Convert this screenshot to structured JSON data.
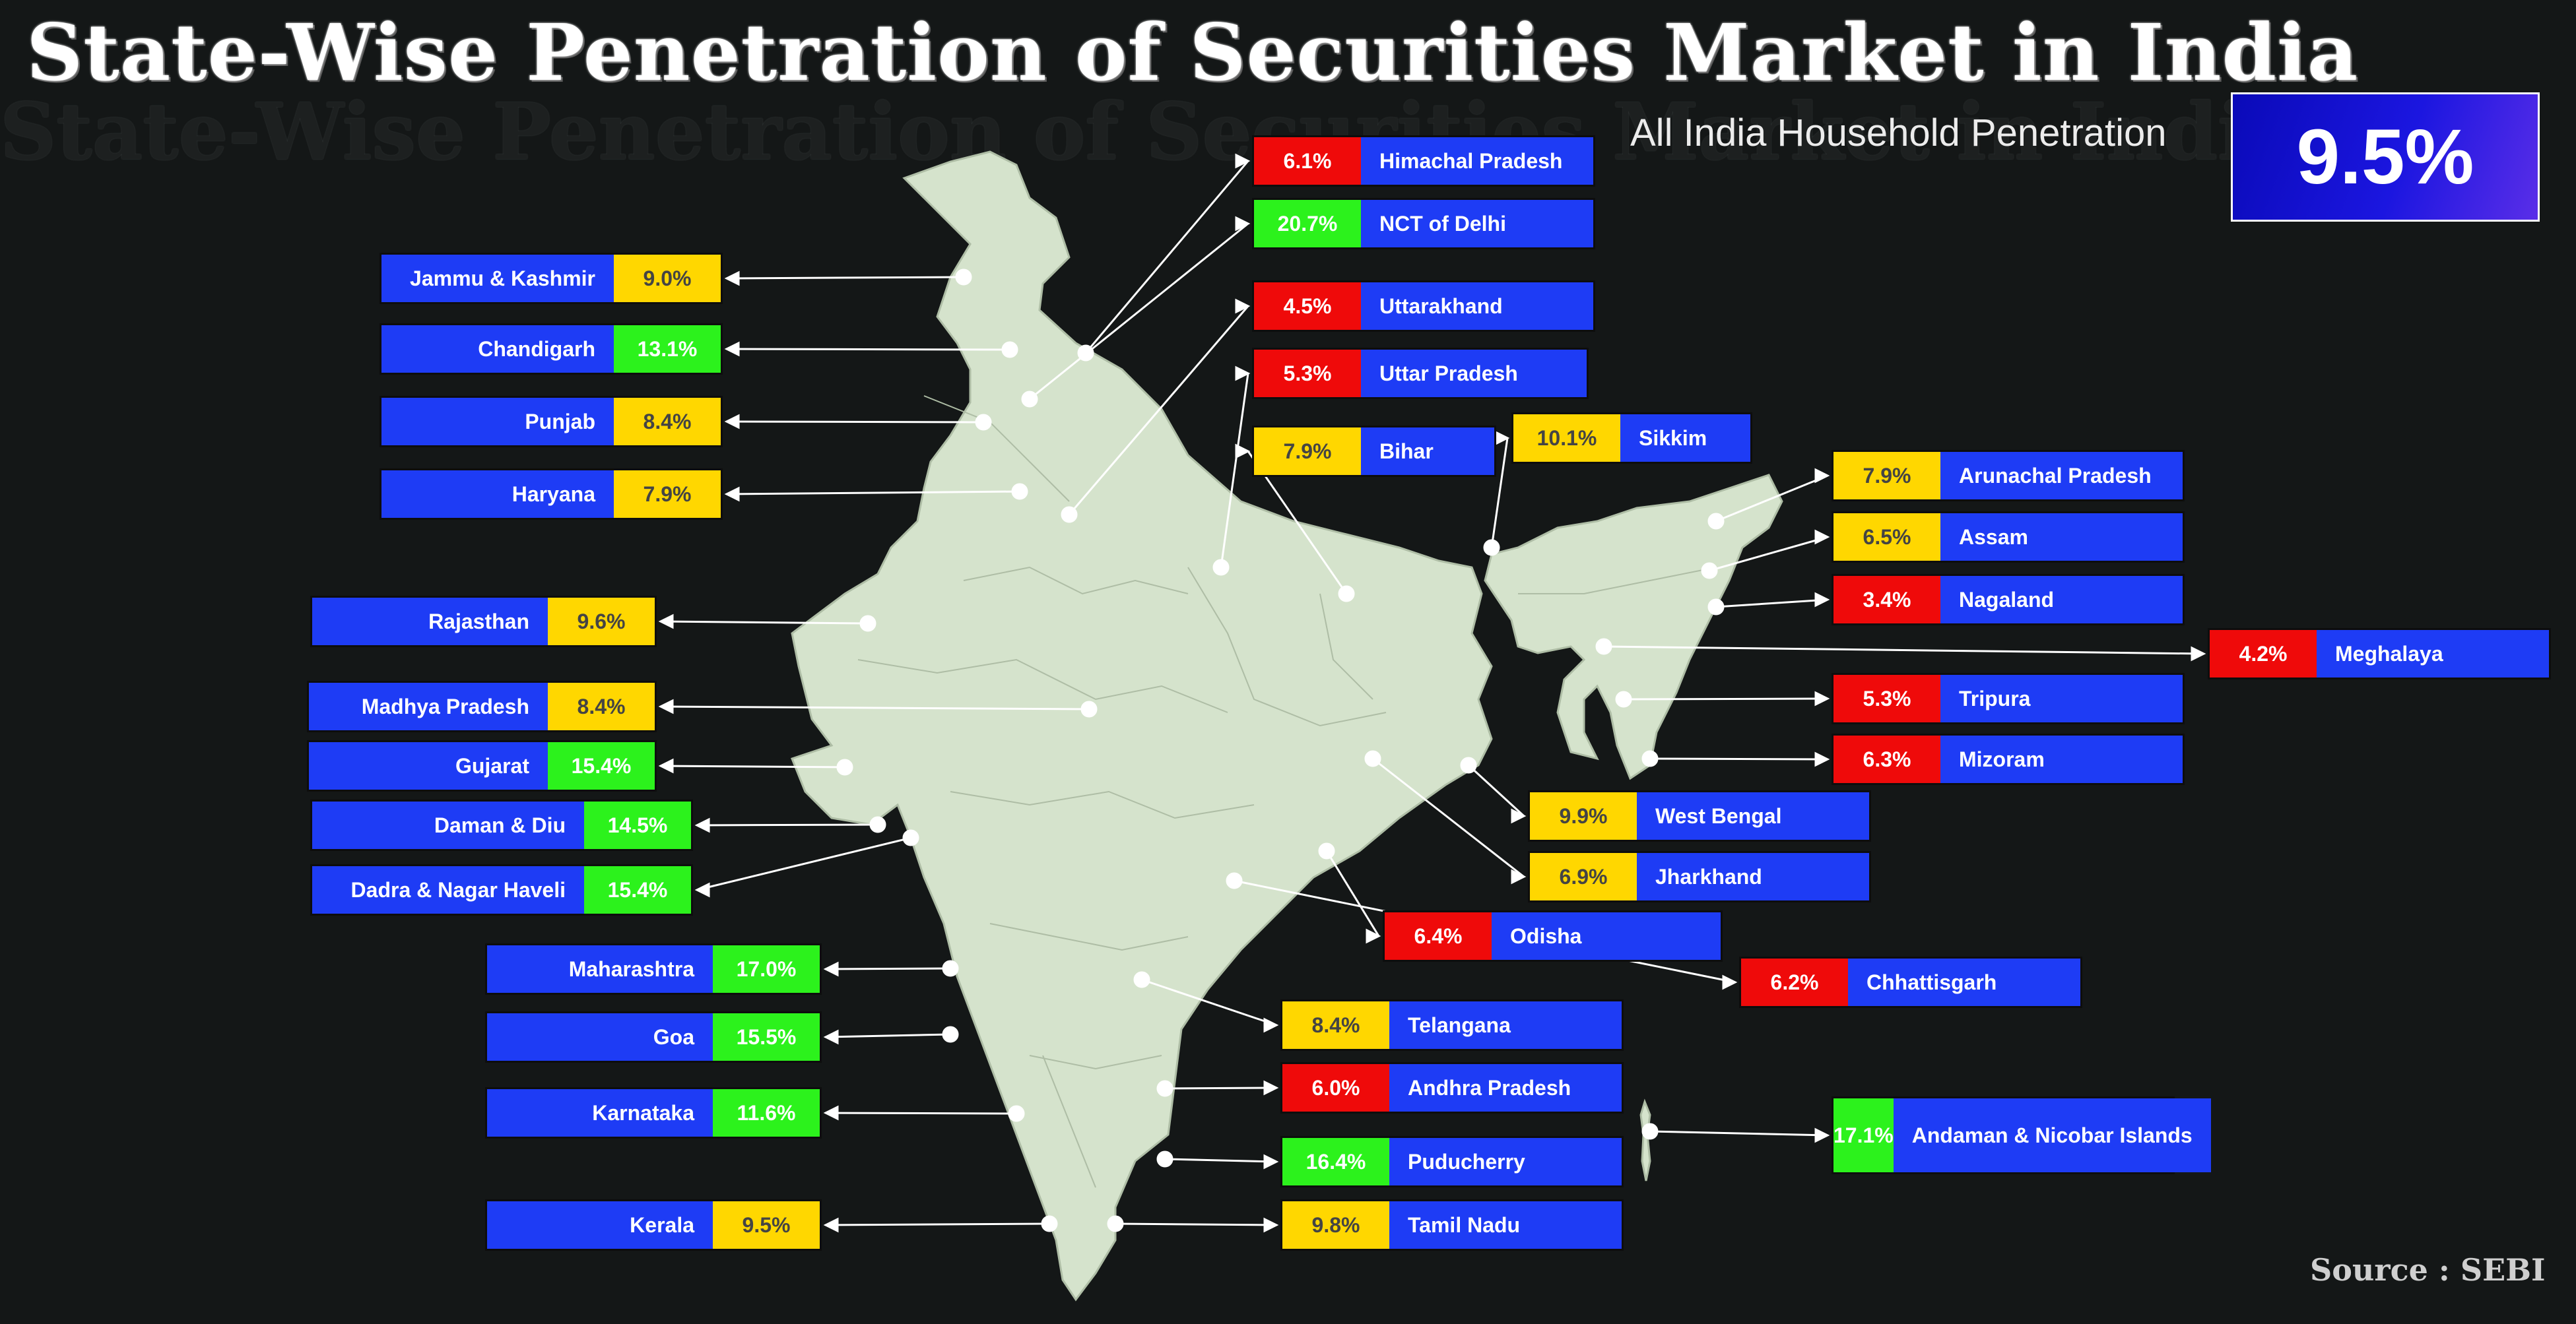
{
  "title": "State-Wise Penetration of Securities Market in India",
  "all_india": {
    "label": "All India Household Penetration",
    "value": "9.5%"
  },
  "source": "Source : SEBI",
  "colors": {
    "red": "#ef0a0a",
    "green": "#2cf21c",
    "yellow": "#ffd700",
    "label_bg": "#1e3cf5",
    "map_fill": "#d5e3cc"
  },
  "states": [
    {
      "name": "Jammu & Kashmir",
      "value": "9.0%",
      "color": "yellow"
    },
    {
      "name": "Chandigarh",
      "value": "13.1%",
      "color": "green"
    },
    {
      "name": "Punjab",
      "value": "8.4%",
      "color": "yellow"
    },
    {
      "name": "Haryana",
      "value": "7.9%",
      "color": "yellow"
    },
    {
      "name": "Rajasthan",
      "value": "9.6%",
      "color": "yellow"
    },
    {
      "name": "Madhya Pradesh",
      "value": "8.4%",
      "color": "yellow"
    },
    {
      "name": "Gujarat",
      "value": "15.4%",
      "color": "green"
    },
    {
      "name": "Daman & Diu",
      "value": "14.5%",
      "color": "green"
    },
    {
      "name": "Dadra & Nagar Haveli",
      "value": "15.4%",
      "color": "green"
    },
    {
      "name": "Maharashtra",
      "value": "17.0%",
      "color": "green"
    },
    {
      "name": "Goa",
      "value": "15.5%",
      "color": "green"
    },
    {
      "name": "Karnataka",
      "value": "11.6%",
      "color": "green"
    },
    {
      "name": "Kerala",
      "value": "9.5%",
      "color": "yellow"
    },
    {
      "name": "Himachal Pradesh",
      "value": "6.1%",
      "color": "red"
    },
    {
      "name": "NCT of Delhi",
      "value": "20.7%",
      "color": "green"
    },
    {
      "name": "Uttarakhand",
      "value": "4.5%",
      "color": "red"
    },
    {
      "name": "Uttar Pradesh",
      "value": "5.3%",
      "color": "red"
    },
    {
      "name": "Bihar",
      "value": "7.9%",
      "color": "yellow"
    },
    {
      "name": "Sikkim",
      "value": "10.1%",
      "color": "yellow"
    },
    {
      "name": "Arunachal Pradesh",
      "value": "7.9%",
      "color": "yellow"
    },
    {
      "name": "Assam",
      "value": "6.5%",
      "color": "yellow"
    },
    {
      "name": "Nagaland",
      "value": "3.4%",
      "color": "red"
    },
    {
      "name": "Meghalaya",
      "value": "4.2%",
      "color": "red"
    },
    {
      "name": "Tripura",
      "value": "5.3%",
      "color": "red"
    },
    {
      "name": "Mizoram",
      "value": "6.3%",
      "color": "red"
    },
    {
      "name": "West Bengal",
      "value": "9.9%",
      "color": "yellow"
    },
    {
      "name": "Jharkhand",
      "value": "6.9%",
      "color": "yellow"
    },
    {
      "name": "Odisha",
      "value": "6.4%",
      "color": "red"
    },
    {
      "name": "Chhattisgarh",
      "value": "6.2%",
      "color": "red"
    },
    {
      "name": "Telangana",
      "value": "8.4%",
      "color": "yellow"
    },
    {
      "name": "Andhra Pradesh",
      "value": "6.0%",
      "color": "red"
    },
    {
      "name": "Puducherry",
      "value": "16.4%",
      "color": "green"
    },
    {
      "name": "Tamil Nadu",
      "value": "9.8%",
      "color": "yellow"
    },
    {
      "name": "Andaman & Nicobar Islands",
      "value": "17.1%",
      "color": "green"
    }
  ]
}
